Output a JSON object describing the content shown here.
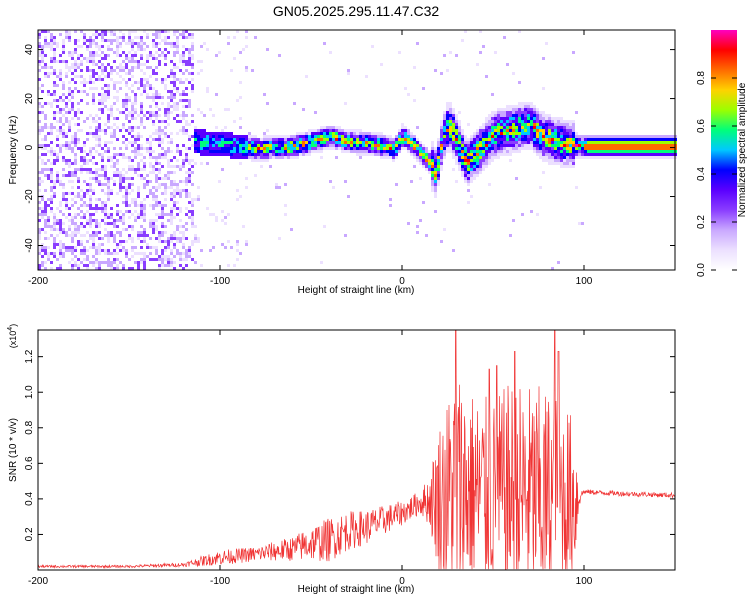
{
  "title": "GN05.2025.295.11.47.C32",
  "colors": {
    "snr_line": "#f03434",
    "frame": "#000000",
    "colormap": [
      "#ffffff",
      "#ece0ff",
      "#c9a8ff",
      "#8a3dff",
      "#5a00ff",
      "#0000ff",
      "#00c8ff",
      "#00ff7a",
      "#9cff00",
      "#ffd200",
      "#ff6a00",
      "#ff0000",
      "#ff00c0"
    ]
  },
  "chart_data": [
    {
      "type": "heatmap",
      "title": "GN05.2025.295.11.47.C32",
      "xlabel": "Height of straight line (km)",
      "ylabel": "Frequency (Hz)",
      "xlim": [
        -200,
        150
      ],
      "ylim": [
        -50,
        48
      ],
      "xticks": [
        -200,
        -100,
        0,
        100
      ],
      "yticks": [
        -40,
        -20,
        0,
        20,
        40
      ],
      "colorbar": {
        "label": "Normalized spectral amplitude",
        "range": [
          0,
          1
        ],
        "ticks": [
          "0.0",
          "0.2",
          "0.4",
          "0.6",
          "0.8"
        ]
      },
      "ridge": {
        "x": [
          -115,
          -100,
          -80,
          -60,
          -45,
          -40,
          -30,
          -15,
          -5,
          0,
          5,
          10,
          15,
          18,
          22,
          25,
          28,
          35,
          40,
          45,
          50,
          60,
          70,
          75,
          80,
          90,
          100,
          150
        ],
        "y": [
          3,
          2,
          0,
          1,
          4,
          5,
          3,
          2,
          0,
          5,
          2,
          -2,
          -6,
          -10,
          5,
          10,
          6,
          -6,
          -2,
          2,
          6,
          8,
          10,
          6,
          4,
          2,
          1,
          1
        ]
      }
    },
    {
      "type": "line",
      "xlabel": "Height of straight line (km)",
      "ylabel": "SNR (10 * v/v)",
      "y_multiplier": "(x10",
      "y_multiplier_exp": "4",
      "xlim": [
        -200,
        150
      ],
      "ylim": [
        0,
        1.35
      ],
      "xticks": [
        -200,
        -100,
        0,
        100
      ],
      "yticks": [
        0.2,
        0.4,
        0.6,
        0.8,
        1.0,
        1.2
      ],
      "ytick_labels": [
        "0.2",
        "0.4",
        "0.6",
        "0.8",
        "1.0",
        "1.2"
      ],
      "x": [
        -200,
        -150,
        -120,
        -110,
        -100,
        -80,
        -60,
        -50,
        -40,
        -30,
        -20,
        -10,
        0,
        10,
        15,
        20,
        25,
        30,
        40,
        50,
        60,
        70,
        80,
        90,
        95,
        98,
        100,
        120,
        150
      ],
      "y": [
        0.02,
        0.02,
        0.03,
        0.05,
        0.07,
        0.09,
        0.12,
        0.15,
        0.17,
        0.22,
        0.24,
        0.28,
        0.32,
        0.38,
        0.39,
        0.4,
        0.42,
        0.46,
        0.44,
        0.4,
        0.44,
        0.42,
        0.4,
        0.41,
        0.4,
        0.42,
        0.44,
        0.43,
        0.42
      ],
      "spread": [
        0.005,
        0.005,
        0.008,
        0.02,
        0.03,
        0.03,
        0.05,
        0.07,
        0.09,
        0.08,
        0.07,
        0.06,
        0.05,
        0.05,
        0.1,
        0.3,
        0.4,
        0.5,
        0.4,
        0.4,
        0.45,
        0.45,
        0.45,
        0.4,
        0.3,
        0.02,
        0.01,
        0.01,
        0.01
      ],
      "peaks": [
        [
          29.5,
          1.35
        ],
        [
          48,
          1.13
        ],
        [
          52,
          1.15
        ],
        [
          62,
          1.23
        ],
        [
          84,
          1.36
        ],
        [
          86,
          1.23
        ]
      ]
    }
  ]
}
